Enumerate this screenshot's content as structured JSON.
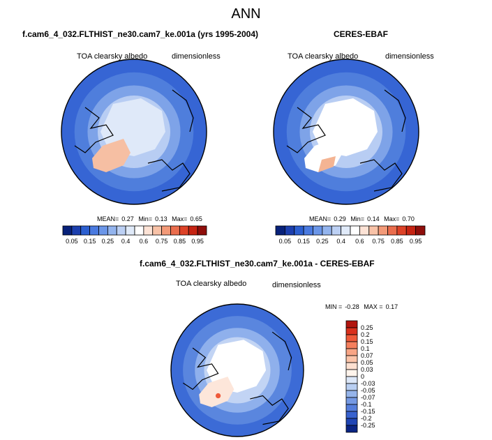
{
  "page": {
    "title": "ANN"
  },
  "chart_data": [
    {
      "type": "heatmap",
      "projection": "polar-stereographic north",
      "title": "f.cam6_4_032.FLTHIST_ne30.cam7_ke.001a (yrs 1995-2004)",
      "left_label": "TOA clearsky albedo",
      "right_label": "dimensionless",
      "stats": {
        "mean_label": "MEAN=",
        "mean": "0.27",
        "min_label": "Min=",
        "min": "0.13",
        "max_label": "Max=",
        "max": "0.65"
      },
      "colorbar": {
        "orientation": "horizontal",
        "ticks": [
          "0.05",
          "0.15",
          "0.25",
          "0.4",
          "0.6",
          "0.75",
          "0.85",
          "0.95"
        ],
        "colors": [
          "#08217a",
          "#1c3fae",
          "#2c5fd0",
          "#4a7ae0",
          "#6b96e8",
          "#93b4ee",
          "#bcd0f4",
          "#e0eaf9",
          "#ffffff",
          "#fde3d6",
          "#f8c2a7",
          "#f39a78",
          "#ea6d4d",
          "#dd4227",
          "#c62413",
          "#8f0e0b"
        ]
      },
      "field": {
        "cap_fill": "white-to-pale-blue",
        "greenland": "salmon 0.6",
        "ocean": "blue 0.1-0.25"
      }
    },
    {
      "type": "heatmap",
      "projection": "polar-stereographic north",
      "title": "CERES-EBAF",
      "left_label": "TOA clearsky albedo",
      "right_label": "dimensionless",
      "stats": {
        "mean_label": "MEAN=",
        "mean": "0.29",
        "min_label": "Min=",
        "min": "0.14",
        "max_label": "Max=",
        "max": "0.70"
      },
      "colorbar": {
        "orientation": "horizontal",
        "ticks": [
          "0.05",
          "0.15",
          "0.25",
          "0.4",
          "0.6",
          "0.75",
          "0.85",
          "0.95"
        ],
        "colors": [
          "#08217a",
          "#1c3fae",
          "#2c5fd0",
          "#4a7ae0",
          "#6b96e8",
          "#93b4ee",
          "#bcd0f4",
          "#e0eaf9",
          "#ffffff",
          "#fde3d6",
          "#f8c2a7",
          "#f39a78",
          "#ea6d4d",
          "#dd4227",
          "#c62413",
          "#8f0e0b"
        ]
      },
      "field": {
        "cap_fill": "white",
        "greenland": "salmon 0.6",
        "ocean": "blue 0.1-0.3"
      }
    },
    {
      "type": "heatmap",
      "projection": "polar-stereographic north",
      "title": "f.cam6_4_032.FLTHIST_ne30.cam7_ke.001a - CERES-EBAF",
      "left_label": "TOA clearsky albedo",
      "right_label": "dimensionless",
      "stats": {
        "min_label": "MIN =",
        "min": "-0.28",
        "max_label": "MAX =",
        "max": "0.17"
      },
      "colorbar": {
        "orientation": "vertical",
        "ticks": [
          "0.25",
          "0.2",
          "0.15",
          "0.1",
          "0.07",
          "0.05",
          "0.03",
          "0",
          "-0.03",
          "-0.05",
          "-0.07",
          "-0.1",
          "-0.15",
          "-0.2",
          "-0.25"
        ],
        "colors": [
          "#b2150e",
          "#d9301c",
          "#ef5a3a",
          "#f57f5d",
          "#f8a585",
          "#fbc4a9",
          "#fde0d0",
          "#fff4ec",
          "#dce7f8",
          "#b9cff2",
          "#95b4ea",
          "#7599e3",
          "#557edb",
          "#3862cf",
          "#1f45b5",
          "#0a2484"
        ]
      },
      "field": {
        "cap_fill": "white",
        "ocean": "blue negative",
        "greenland": "pale mixed"
      }
    }
  ]
}
